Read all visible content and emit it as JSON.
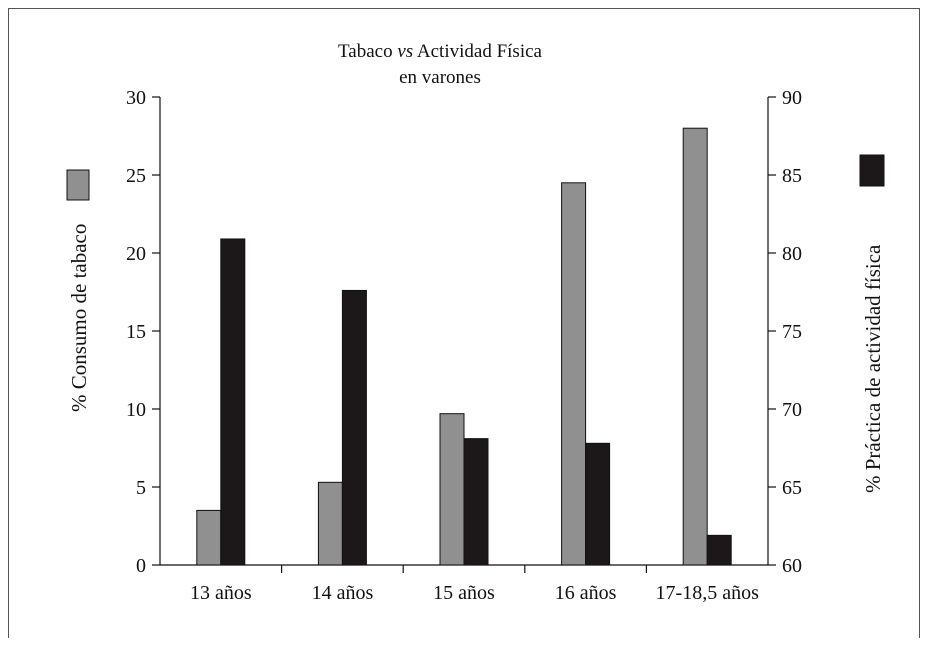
{
  "chart_data": {
    "type": "bar",
    "title_main": "Tabaco ",
    "title_italic": "vs",
    "title_rest": " Actividad Física",
    "subtitle": "en varones",
    "categories": [
      "13 años",
      "14 años",
      "15 años",
      "16 años",
      "17-18,5 años"
    ],
    "series": [
      {
        "name": "% Consumo de tabaco",
        "axis": "left",
        "color": "#909090",
        "values": [
          3.5,
          5.3,
          9.7,
          24.5,
          28.0
        ]
      },
      {
        "name": "% Práctica de actividad física",
        "axis": "right",
        "color": "#1c1718",
        "values": [
          80.9,
          77.6,
          68.1,
          67.8,
          61.9
        ]
      }
    ],
    "ylabel_left": "% Consumo de tabaco",
    "ylabel_right": "% Práctica de actividad física",
    "ylim_left": [
      0,
      30
    ],
    "yticks_left": [
      "0",
      "5",
      "10",
      "15",
      "20",
      "25",
      "30"
    ],
    "ylim_right": [
      60,
      90
    ],
    "yticks_right": [
      "60",
      "65",
      "70",
      "75",
      "80",
      "85",
      "90"
    ],
    "grid": false
  }
}
